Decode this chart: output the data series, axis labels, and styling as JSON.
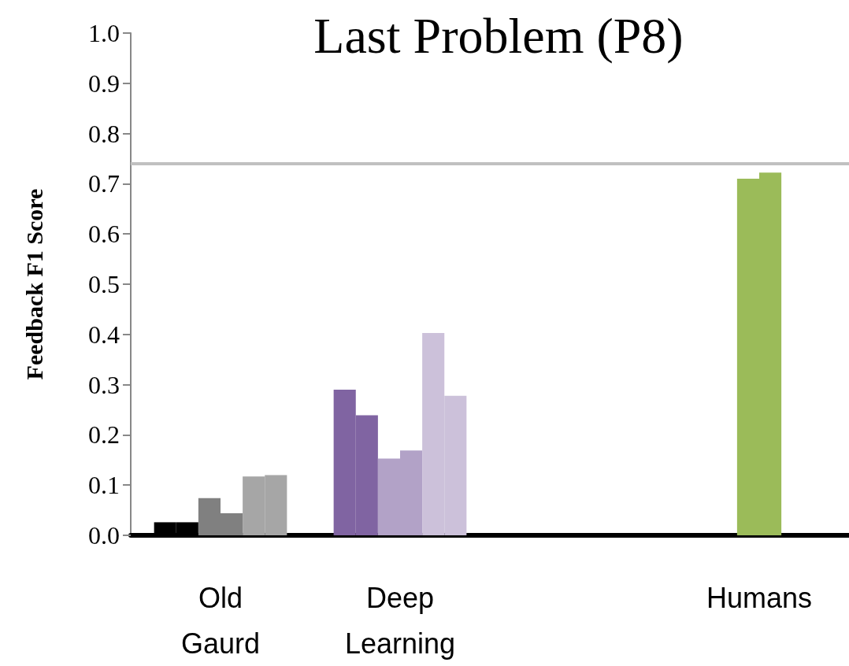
{
  "chart_data": {
    "type": "bar",
    "title": "Last Problem (P8)",
    "ylabel": "Feedback F1 Score",
    "categories": [
      "Old Gaurd",
      "Deep Learning",
      null,
      "Humans"
    ],
    "series": [
      {
        "colors": [
          "#000000",
          "#8064a2",
          "#000000",
          "#000000"
        ],
        "values": [
          0.026,
          0.29,
          null,
          null
        ]
      },
      {
        "colors": [
          "#000000",
          "#8064a2",
          "#000000",
          "#000000"
        ],
        "values": [
          0.026,
          0.239,
          null,
          null
        ]
      },
      {
        "colors": [
          "#808080",
          "#b2a2c7",
          "#9bbb59",
          "#9bbb59"
        ],
        "values": [
          0.074,
          0.153,
          null,
          0.71
        ]
      },
      {
        "colors": [
          "#808080",
          "#b2a2c7",
          "#9bbb59",
          "#9bbb59"
        ],
        "values": [
          0.044,
          0.169,
          null,
          0.722
        ]
      },
      {
        "colors": [
          "#a6a6a6",
          "#ccc1da",
          "#000000",
          "#000000"
        ],
        "values": [
          0.117,
          0.403,
          null,
          null
        ]
      },
      {
        "colors": [
          "#a6a6a6",
          "#ccc1da",
          "#000000",
          "#000000"
        ],
        "values": [
          0.12,
          0.278,
          null,
          null
        ]
      }
    ],
    "ylim": [
      0,
      1
    ],
    "yticks": [
      {
        "value": 0,
        "label": "0.0"
      },
      0.1,
      0.2,
      0.3,
      0.4,
      0.5,
      0.6,
      0.7,
      0.8,
      0.9,
      {
        "value": 1,
        "label": "1.0"
      }
    ],
    "ref_lines": [
      {
        "axis": "y",
        "value": 0.742,
        "color": "#c0c0c0"
      }
    ],
    "grid": false
  }
}
